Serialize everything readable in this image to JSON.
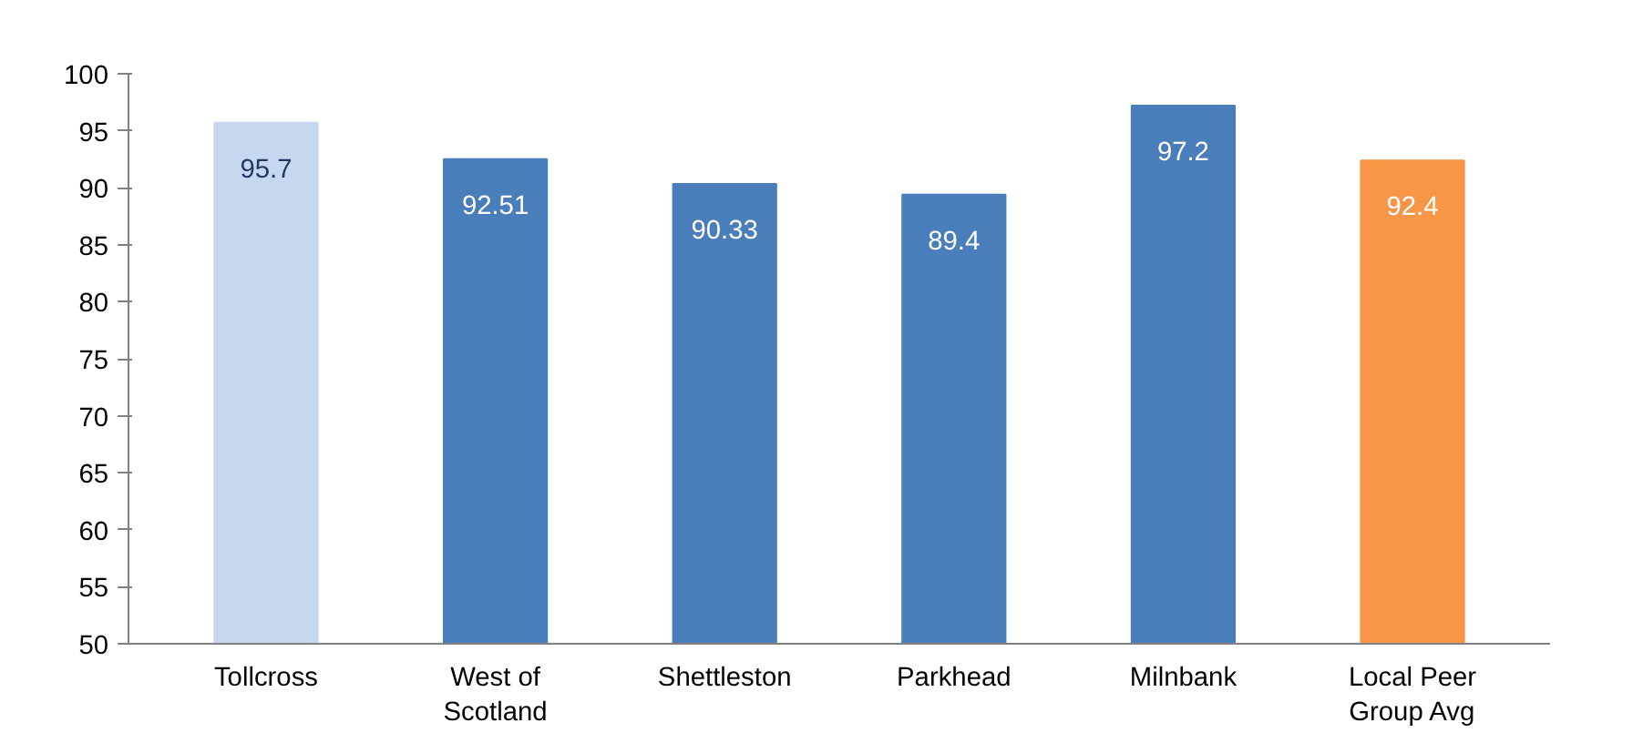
{
  "chart_data": {
    "type": "bar",
    "categories": [
      "Tollcross",
      "West of\nScotland",
      "Shettleston",
      "Parkhead",
      "Milnbank",
      "Local Peer\nGroup Avg"
    ],
    "values": [
      95.7,
      92.51,
      90.33,
      89.4,
      97.2,
      92.4
    ],
    "colors": [
      "#c6d7ef",
      "#4a7ebb",
      "#4a7ebb",
      "#4a7ebb",
      "#4a7ebb",
      "#f79646"
    ],
    "ylim": [
      50,
      100
    ],
    "yticks": [
      50,
      55,
      60,
      65,
      70,
      75,
      80,
      85,
      90,
      95,
      100
    ],
    "data_labels": true,
    "grid": false
  }
}
